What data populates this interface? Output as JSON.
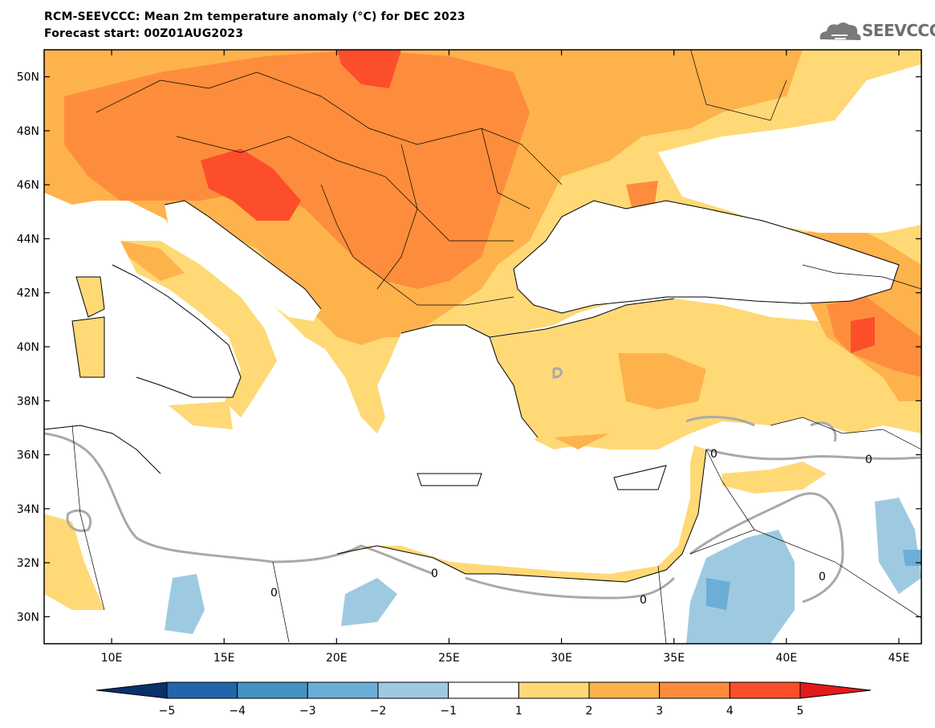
{
  "title": "RCM-SEEVCCC: Mean 2m temperature anomaly (°C) for DEC 2023",
  "subtitle": "Forecast start: 00Z01AUG2023",
  "logo": {
    "text": "SEEVCCC",
    "icon": "cloud-icon"
  },
  "map": {
    "lon_range": [
      7,
      46
    ],
    "lat_range": [
      29,
      51
    ],
    "lon_ticks": [
      "10E",
      "15E",
      "20E",
      "25E",
      "30E",
      "35E",
      "40E",
      "45E"
    ],
    "lat_ticks": [
      "50N",
      "48N",
      "46N",
      "44N",
      "42N",
      "40N",
      "38N",
      "36N",
      "34N",
      "32N",
      "30N"
    ],
    "contour_label": "0",
    "colors": {
      "sea": "#ffffff",
      "border": "#000000",
      "zero_contour": "#a9a9a9"
    }
  },
  "colorbar": {
    "labels": [
      "-5",
      "-4",
      "-3",
      "-2",
      "-1",
      "1",
      "2",
      "3",
      "4",
      "5"
    ],
    "colors": [
      "#08306b",
      "#2166ac",
      "#4393c3",
      "#6baed6",
      "#9ecae1",
      "#ffffff",
      "#fed976",
      "#feb24c",
      "#fd8d3c",
      "#fc4e2a",
      "#e31a1c"
    ]
  }
}
